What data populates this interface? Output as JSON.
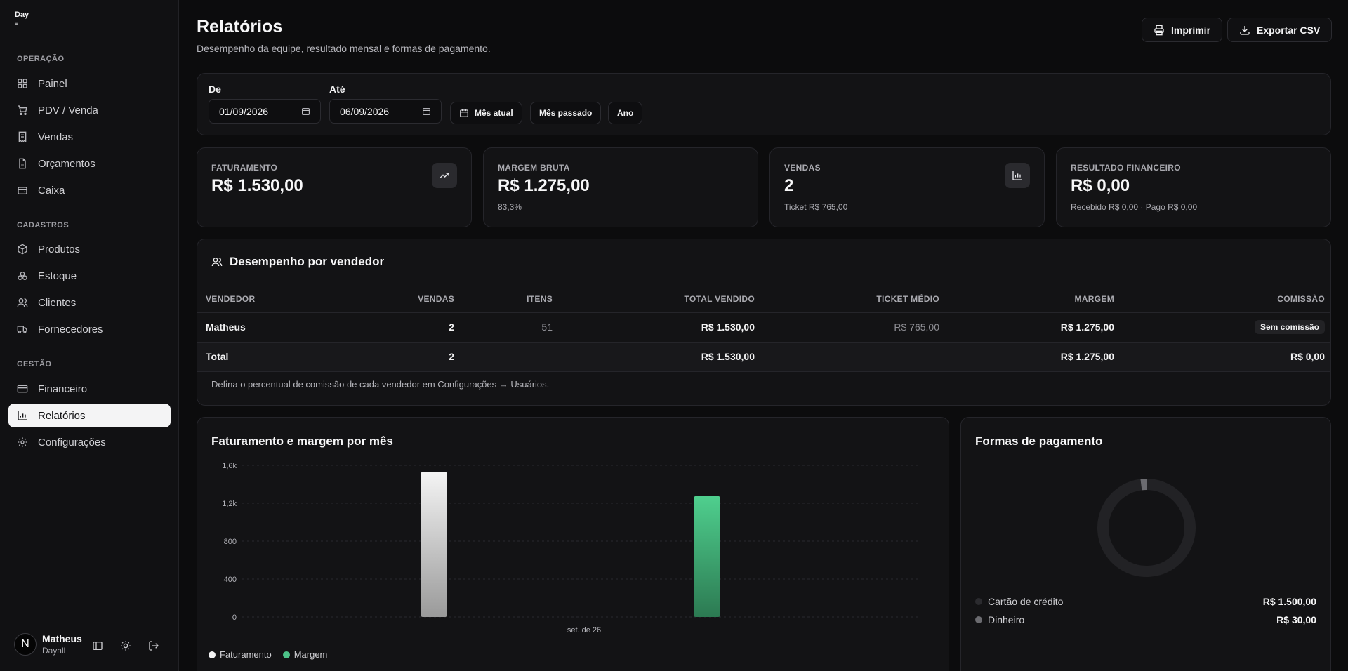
{
  "brand": {
    "logo_text": "Day"
  },
  "sidebar": {
    "sections": [
      {
        "label": "OPERAÇÃO",
        "items": [
          {
            "label": "Painel",
            "icon": "grid-icon"
          },
          {
            "label": "PDV / Venda",
            "icon": "cart-icon"
          },
          {
            "label": "Vendas",
            "icon": "receipt-icon"
          },
          {
            "label": "Orçamentos",
            "icon": "file-icon"
          },
          {
            "label": "Caixa",
            "icon": "wallet-icon"
          }
        ]
      },
      {
        "label": "CADASTROS",
        "items": [
          {
            "label": "Produtos",
            "icon": "box-icon"
          },
          {
            "label": "Estoque",
            "icon": "boxes-icon"
          },
          {
            "label": "Clientes",
            "icon": "users-icon"
          },
          {
            "label": "Fornecedores",
            "icon": "truck-icon"
          }
        ]
      },
      {
        "label": "GESTÃO",
        "items": [
          {
            "label": "Financeiro",
            "icon": "credit-card-icon"
          },
          {
            "label": "Relatórios",
            "icon": "bar-chart-icon",
            "active": true
          },
          {
            "label": "Configurações",
            "icon": "gear-icon"
          }
        ]
      }
    ],
    "user": {
      "initial": "N",
      "name": "Matheus",
      "org": "Dayall"
    }
  },
  "header": {
    "title": "Relatórios",
    "subtitle": "Desempenho da equipe, resultado mensal e formas de pagamento.",
    "print_label": "Imprimir",
    "export_label": "Exportar CSV"
  },
  "filters": {
    "from_label": "De",
    "from_value": "01/09/2026",
    "to_label": "Até",
    "to_value": "06/09/2026",
    "presets": [
      "Mês atual",
      "Mês passado",
      "Ano"
    ]
  },
  "kpis": [
    {
      "label": "FATURAMENTO",
      "value": "R$ 1.530,00",
      "sub": "",
      "icon": "trending-up-icon"
    },
    {
      "label": "MARGEM BRUTA",
      "value": "R$ 1.275,00",
      "sub": "83,3%",
      "icon": ""
    },
    {
      "label": "VENDAS",
      "value": "2",
      "sub": "Ticket R$ 765,00",
      "icon": "bar-chart-icon"
    },
    {
      "label": "RESULTADO FINANCEIRO",
      "value": "R$ 0,00",
      "sub": "Recebido R$ 0,00 · Pago R$ 0,00",
      "icon": ""
    }
  ],
  "sellers": {
    "title": "Desempenho por vendedor",
    "columns": [
      "VENDEDOR",
      "VENDAS",
      "ITENS",
      "TOTAL VENDIDO",
      "TICKET MÉDIO",
      "MARGEM",
      "COMISSÃO"
    ],
    "rows": [
      {
        "vendedor": "Matheus",
        "vendas": "2",
        "itens": "51",
        "total": "R$ 1.530,00",
        "ticket": "R$ 765,00",
        "margem": "R$ 1.275,00",
        "comissao": "Sem comissão"
      }
    ],
    "total": {
      "label": "Total",
      "vendas": "2",
      "itens": "",
      "total": "R$ 1.530,00",
      "ticket": "",
      "margem": "R$ 1.275,00",
      "comissao": "R$ 0,00"
    },
    "note": "Defina o percentual de comissão de cada vendedor em Configurações → Usuários."
  },
  "monthly": {
    "title": "Faturamento e margem por mês",
    "legend": [
      "Faturamento",
      "Margem"
    ]
  },
  "payments": {
    "title": "Formas de pagamento",
    "items": [
      {
        "name": "Cartão de crédito",
        "value": "R$ 1.500,00",
        "amount": 1500,
        "color": "#2b2b2f"
      },
      {
        "name": "Dinheiro",
        "value": "R$ 30,00",
        "amount": 30,
        "color": "#6b6b70"
      }
    ]
  },
  "chart_data": {
    "type": "bar",
    "categories": [
      "set. de 26"
    ],
    "series": [
      {
        "name": "Faturamento",
        "values": [
          1530
        ]
      },
      {
        "name": "Margem",
        "values": [
          1275
        ]
      }
    ],
    "yticks": [
      "0",
      "400",
      "800",
      "1,2k",
      "1,6k"
    ],
    "ylim": [
      0,
      1600
    ],
    "legend": "bottom-left",
    "colors": {
      "Faturamento": "#e8e8e8",
      "Margem": "#4cc288"
    }
  }
}
